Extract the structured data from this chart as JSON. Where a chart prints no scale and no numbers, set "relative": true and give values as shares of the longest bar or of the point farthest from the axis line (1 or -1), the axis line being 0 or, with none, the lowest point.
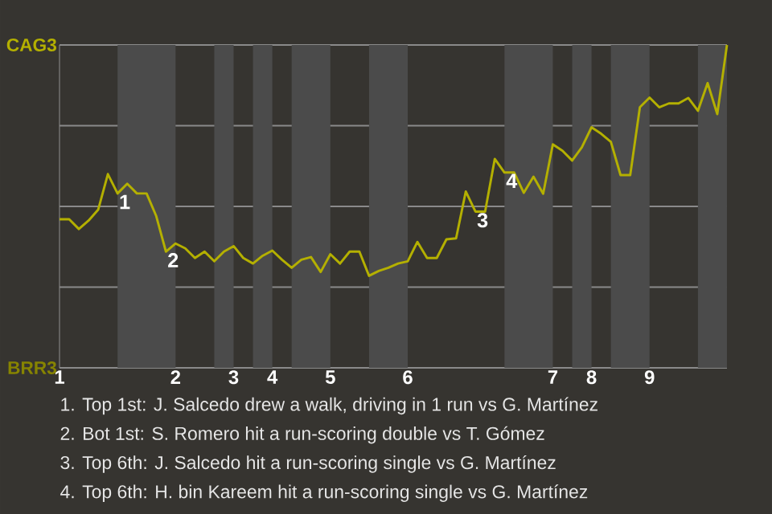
{
  "chart_data": {
    "type": "line",
    "relative": true,
    "categories": [
      "1",
      null,
      null,
      null,
      null,
      null,
      null,
      null,
      null,
      null,
      null,
      null,
      "2",
      null,
      null,
      null,
      null,
      null,
      "3",
      null,
      null,
      null,
      "4",
      null,
      null,
      null,
      null,
      null,
      "5",
      null,
      null,
      null,
      null,
      null,
      null,
      null,
      "6",
      null,
      null,
      null,
      null,
      null,
      null,
      null,
      null,
      null,
      null,
      null,
      null,
      null,
      null,
      "7",
      null,
      null,
      null,
      "8",
      null,
      null,
      null,
      null,
      null,
      "9",
      null,
      null,
      null,
      null,
      null,
      null,
      null,
      null
    ],
    "grid": "y",
    "marker": "none",
    "line_style": "solid",
    "series": [
      {
        "color": "#b4b000",
        "values": [
          0.46,
          0.46,
          0.43,
          0.456,
          0.49,
          0.6,
          0.54,
          0.57,
          0.54,
          0.54,
          0.47,
          0.36,
          0.385,
          0.37,
          0.34,
          0.36,
          0.33,
          0.36,
          0.377,
          0.34,
          0.323,
          0.347,
          0.363,
          0.335,
          0.31,
          0.335,
          0.343,
          0.297,
          0.352,
          0.323,
          0.36,
          0.36,
          0.285,
          0.3,
          0.31,
          0.323,
          0.33,
          0.39,
          0.34,
          0.34,
          0.398,
          0.401,
          0.546,
          0.484,
          0.484,
          0.647,
          0.605,
          0.605,
          0.542,
          0.592,
          0.539,
          0.692,
          0.672,
          0.642,
          0.683,
          0.745,
          0.725,
          0.7,
          0.597,
          0.597,
          0.807,
          0.837,
          0.807,
          0.819,
          0.819,
          0.836,
          0.796,
          0.882,
          0.786,
          1
        ]
      }
    ],
    "annotations": [
      "CAG3",
      "BRR3",
      {
        "text": "1",
        "y": 0.54
      },
      {
        "text": "2",
        "y": 0.36
      },
      {
        "text": "3",
        "y": 0.484
      },
      {
        "text": "4",
        "y": 0.605
      },
      "1. Top 1st: J. Salcedo drew a walk, driving in 1 run vs G. Martínez",
      "2. Bot 1st: S. Romero hit a run-scoring double vs T. Gómez",
      "3. Top 6th: J. Salcedo hit a run-scoring single vs G. Martínez",
      "4. Top 6th: H. bin Kareem hit a run-scoring single vs G. Martínez"
    ]
  }
}
